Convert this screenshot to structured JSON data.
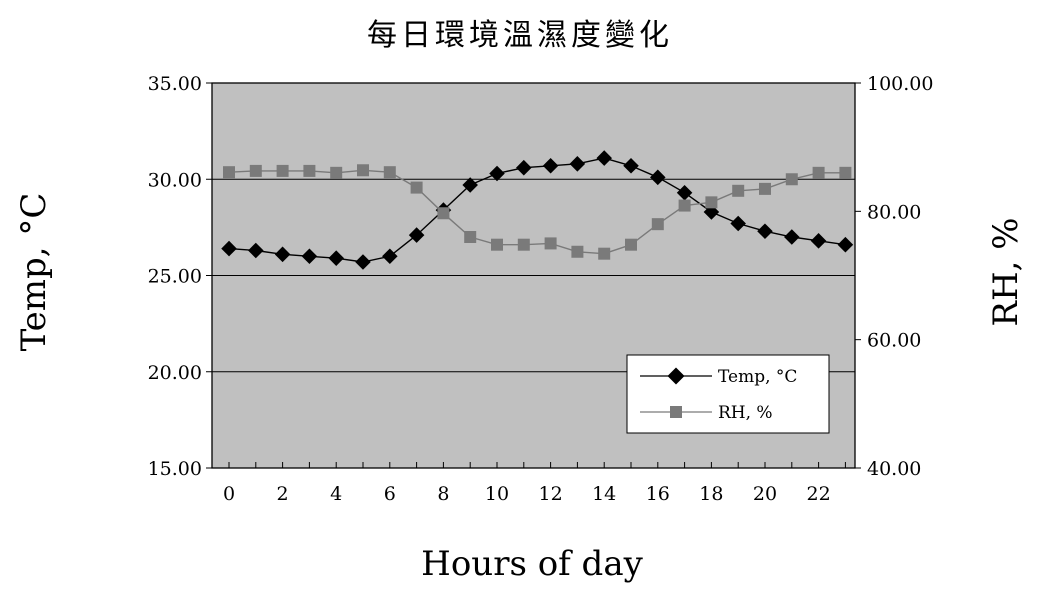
{
  "chart_data": {
    "type": "line",
    "title": "每日環境溫濕度變化",
    "xlabel": "Hours of day",
    "ylabel_left": "Temp, °C",
    "ylabel_right": "RH, %",
    "x": [
      0,
      1,
      2,
      3,
      4,
      5,
      6,
      7,
      8,
      9,
      10,
      11,
      12,
      13,
      14,
      15,
      16,
      17,
      18,
      19,
      20,
      21,
      22,
      23
    ],
    "x_tick_labels": [
      "0",
      "2",
      "4",
      "6",
      "8",
      "10",
      "12",
      "14",
      "16",
      "18",
      "20",
      "22"
    ],
    "y_left_tick_labels": [
      "15.00",
      "20.00",
      "25.00",
      "30.00",
      "35.00"
    ],
    "y_right_tick_labels": [
      "40.00",
      "60.00",
      "80.00",
      "100.00"
    ],
    "ylim_left": [
      15,
      35
    ],
    "ylim_right": [
      40,
      100
    ],
    "grid": true,
    "legend_position": "lower-right",
    "series": [
      {
        "name": "Temp, °C",
        "axis": "left",
        "marker": "diamond",
        "color": "#000000",
        "values": [
          26.4,
          26.3,
          26.1,
          26.0,
          25.9,
          25.7,
          26.0,
          27.1,
          28.4,
          29.7,
          30.3,
          30.6,
          30.7,
          30.8,
          31.1,
          30.7,
          30.1,
          29.3,
          28.3,
          27.7,
          27.3,
          27.0,
          26.8,
          26.6
        ]
      },
      {
        "name": "RH, %",
        "axis": "right",
        "marker": "square",
        "color": "#7a7a7a",
        "values": [
          86.1,
          86.3,
          86.3,
          86.3,
          86.0,
          86.4,
          86.1,
          83.7,
          79.7,
          76.0,
          74.8,
          74.8,
          75.0,
          73.7,
          73.4,
          74.8,
          78.0,
          80.9,
          81.4,
          83.2,
          83.5,
          85.0,
          86.0,
          86.0
        ]
      }
    ]
  }
}
